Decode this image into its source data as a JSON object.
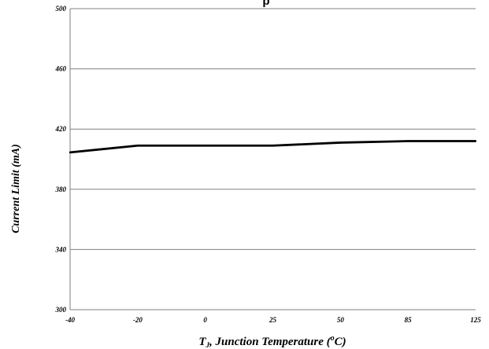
{
  "chart_data": {
    "type": "line",
    "title": "p",
    "xlabel_parts": {
      "t": "T",
      "sub": "J",
      "rest": ", Junction Temperature (",
      "sup": "o",
      "unit": "C)"
    },
    "ylabel": "Current Limit (mA)",
    "categories": [
      "-40",
      "-20",
      "0",
      "25",
      "50",
      "85",
      "125"
    ],
    "series": [
      {
        "values": [
          404.5,
          409,
          409,
          409,
          411,
          412,
          412
        ]
      }
    ],
    "ylim": [
      300,
      500
    ],
    "yticks": [
      "300",
      "340",
      "380",
      "420",
      "460",
      "500"
    ],
    "grid": true,
    "line_color": "#000000",
    "grid_color": "#808080"
  }
}
